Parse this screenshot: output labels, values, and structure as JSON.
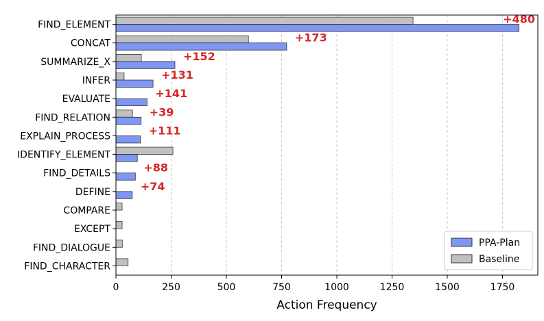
{
  "chart_data": {
    "type": "bar",
    "orientation": "horizontal",
    "categories": [
      "FIND_ELEMENT",
      "CONCAT",
      "SUMMARIZE_X",
      "INFER",
      "EVALUATE",
      "FIND_RELATION",
      "EXPLAIN_PROCESS",
      "IDENTIFY_ELEMENT",
      "FIND_DETAILS",
      "DEFINE",
      "COMPARE",
      "EXCEPT",
      "FIND_DIALOGUE",
      "FIND_CHARACTER"
    ],
    "series": [
      {
        "name": "PPA-Plan",
        "color": "#7f96f5",
        "values": [
          1825,
          773,
          267,
          168,
          141,
          114,
          111,
          97,
          88,
          74,
          0,
          0,
          0,
          0
        ]
      },
      {
        "name": "Baseline",
        "color": "#c0c0c0",
        "values": [
          1345,
          600,
          115,
          37,
          0,
          75,
          0,
          258,
          0,
          0,
          28,
          28,
          29,
          55
        ]
      }
    ],
    "annotations": [
      "+480",
      "+173",
      "+152",
      "+131",
      "+141",
      "+39",
      "+111",
      "",
      "+88",
      "+74",
      "",
      "",
      "",
      ""
    ],
    "xlabel": "Action Frequency",
    "ylabel": "",
    "xlim": [
      0,
      1910
    ],
    "xticks": [
      0,
      250,
      500,
      750,
      1000,
      1250,
      1500,
      1750
    ],
    "grid": "x-dashed",
    "legend_position": "bottom-right"
  }
}
